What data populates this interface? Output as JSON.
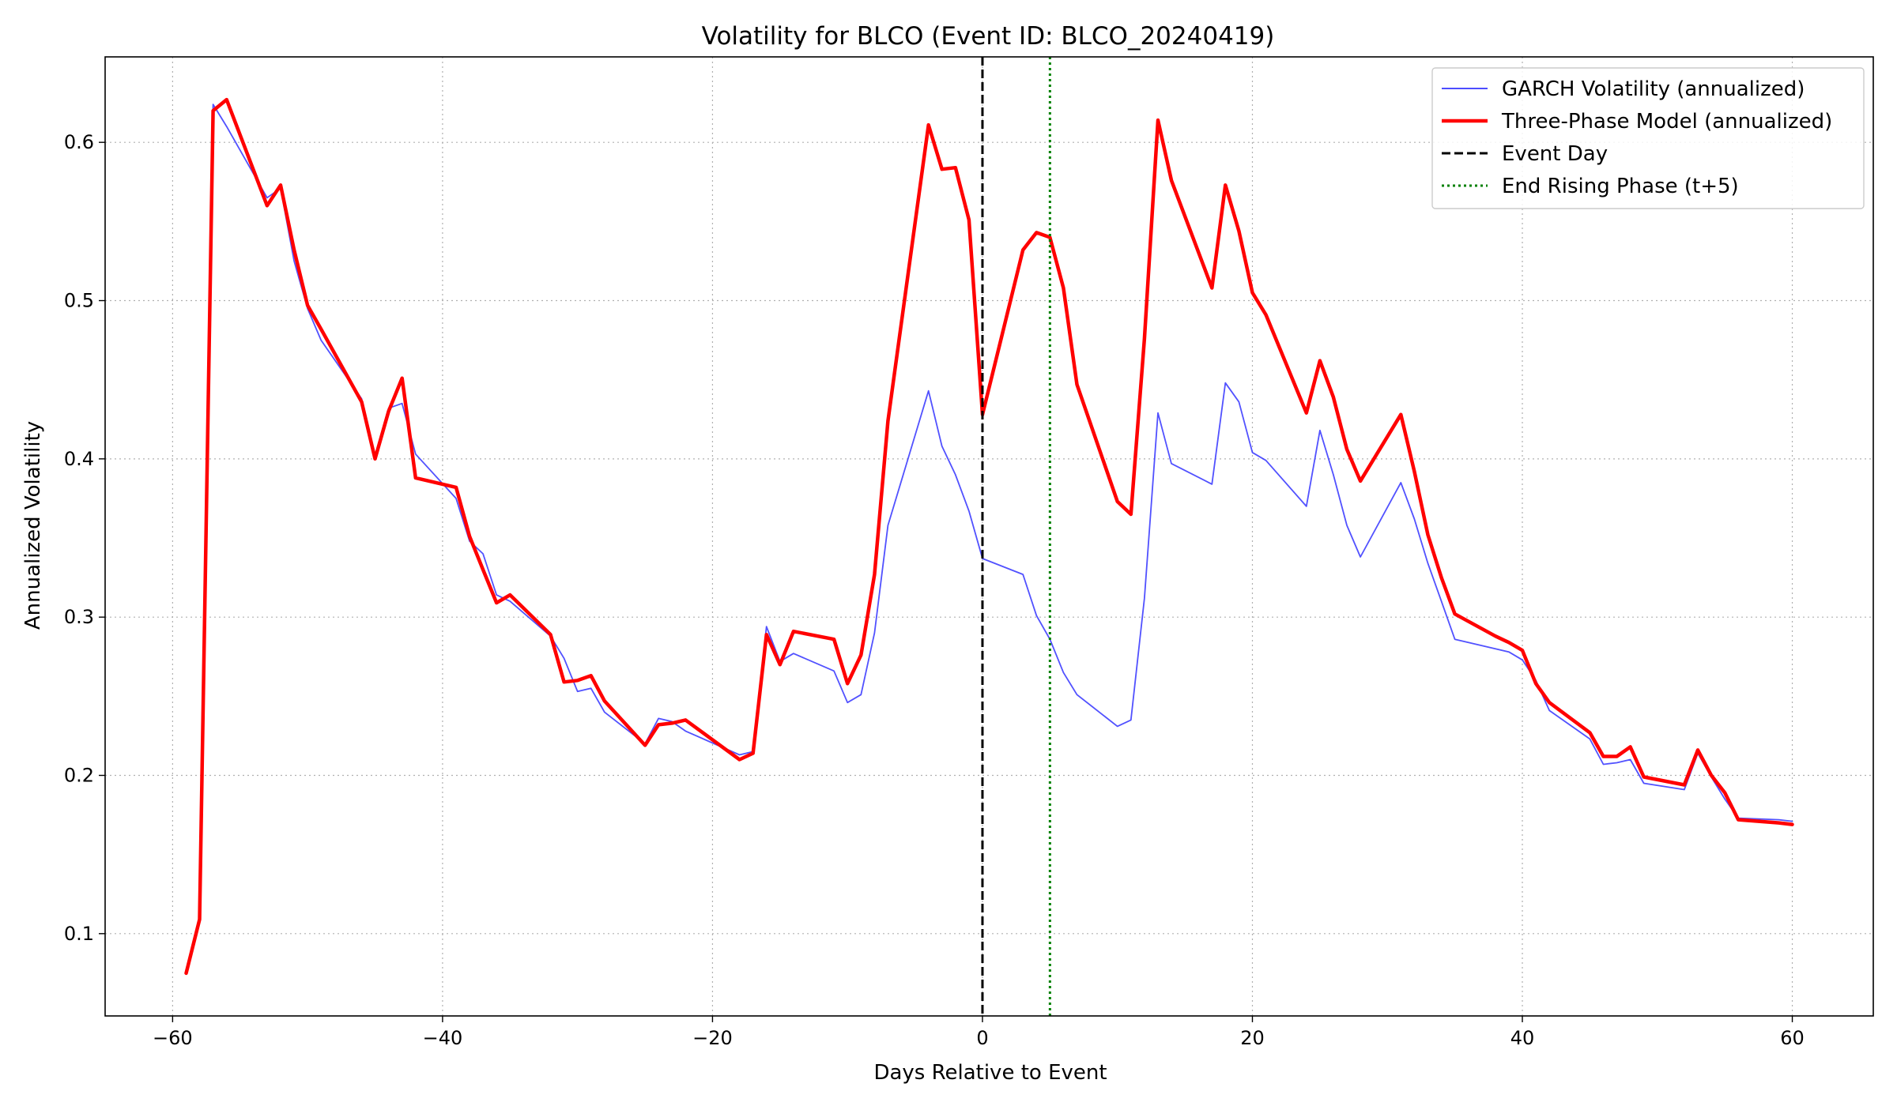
{
  "chart_data": {
    "type": "line",
    "title": "Volatility for BLCO (Event ID: BLCO_20240419)",
    "xlabel": "Days Relative to Event",
    "ylabel": "Annualized Volatility",
    "xlim": [
      -65,
      66
    ],
    "ylim": [
      0.048,
      0.654
    ],
    "xticks": [
      -60,
      -40,
      -20,
      0,
      20,
      40,
      60
    ],
    "xtick_labels": [
      "−60",
      "−40",
      "−20",
      "0",
      "20",
      "40",
      "60"
    ],
    "yticks": [
      0.1,
      0.2,
      0.3,
      0.4,
      0.5,
      0.6
    ],
    "ytick_labels": [
      "0.1",
      "0.2",
      "0.3",
      "0.4",
      "0.5",
      "0.6"
    ],
    "grid": true,
    "legend_position": "top-right",
    "series": [
      {
        "name": "GARCH Volatility (annualized)",
        "color": "#3333ff",
        "style": "solid-thin",
        "x": [
          -59,
          -58,
          -57,
          -56,
          -53,
          -52,
          -51,
          -50,
          -49,
          -46,
          -45,
          -44,
          -43,
          -42,
          -39,
          -38,
          -37,
          -36,
          -35,
          -32,
          -31,
          -30,
          -29,
          -28,
          -25,
          -24,
          -23,
          -22,
          -18,
          -17,
          -16,
          -15,
          -14,
          -11,
          -10,
          -9,
          -8,
          -7,
          -4,
          -3,
          -2,
          -1,
          0,
          3,
          4,
          5,
          6,
          7,
          10,
          11,
          12,
          13,
          14,
          17,
          18,
          19,
          20,
          21,
          24,
          25,
          26,
          27,
          28,
          31,
          32,
          33,
          34,
          35,
          38,
          39,
          40,
          41,
          42,
          45,
          46,
          47,
          48,
          49,
          52,
          53,
          54,
          55,
          56,
          59,
          60
        ],
        "y": [
          0.077,
          0.11,
          0.624,
          0.61,
          0.565,
          0.571,
          0.525,
          0.495,
          0.475,
          0.438,
          0.402,
          0.432,
          0.435,
          0.403,
          0.375,
          0.348,
          0.34,
          0.314,
          0.31,
          0.288,
          0.274,
          0.253,
          0.255,
          0.24,
          0.22,
          0.236,
          0.234,
          0.228,
          0.213,
          0.215,
          0.294,
          0.272,
          0.277,
          0.266,
          0.246,
          0.251,
          0.29,
          0.358,
          0.443,
          0.408,
          0.39,
          0.367,
          0.337,
          0.327,
          0.301,
          0.286,
          0.265,
          0.251,
          0.231,
          0.235,
          0.312,
          0.429,
          0.397,
          0.384,
          0.448,
          0.436,
          0.404,
          0.399,
          0.37,
          0.418,
          0.39,
          0.358,
          0.338,
          0.385,
          0.362,
          0.334,
          0.31,
          0.286,
          0.28,
          0.278,
          0.273,
          0.26,
          0.241,
          0.223,
          0.207,
          0.208,
          0.21,
          0.195,
          0.191,
          0.214,
          0.199,
          0.185,
          0.173,
          0.172,
          0.171
        ]
      },
      {
        "name": "Three-Phase Model (annualized)",
        "color": "#ff0000",
        "style": "solid-thick",
        "x": [
          -59,
          -58,
          -57,
          -56,
          -53,
          -52,
          -51,
          -50,
          -49,
          -46,
          -45,
          -44,
          -43,
          -42,
          -39,
          -38,
          -37,
          -36,
          -35,
          -32,
          -31,
          -30,
          -29,
          -28,
          -25,
          -24,
          -23,
          -22,
          -18,
          -17,
          -16,
          -15,
          -14,
          -11,
          -10,
          -9,
          -8,
          -7,
          -4,
          -3,
          -2,
          -1,
          0,
          3,
          4,
          5,
          6,
          7,
          10,
          11,
          12,
          13,
          14,
          17,
          18,
          19,
          20,
          21,
          24,
          25,
          26,
          27,
          28,
          31,
          32,
          33,
          34,
          35,
          38,
          39,
          40,
          41,
          42,
          45,
          46,
          47,
          48,
          49,
          52,
          53,
          54,
          55,
          56,
          59,
          60
        ],
        "y": [
          0.075,
          0.109,
          0.62,
          0.627,
          0.56,
          0.573,
          0.532,
          0.497,
          0.482,
          0.436,
          0.4,
          0.43,
          0.451,
          0.388,
          0.382,
          0.351,
          0.33,
          0.309,
          0.314,
          0.289,
          0.259,
          0.26,
          0.263,
          0.247,
          0.219,
          0.232,
          0.233,
          0.235,
          0.21,
          0.214,
          0.289,
          0.27,
          0.291,
          0.286,
          0.258,
          0.276,
          0.327,
          0.424,
          0.611,
          0.583,
          0.584,
          0.551,
          0.428,
          0.532,
          0.543,
          0.54,
          0.508,
          0.447,
          0.373,
          0.365,
          0.476,
          0.614,
          0.576,
          0.508,
          0.573,
          0.544,
          0.505,
          0.491,
          0.429,
          0.462,
          0.439,
          0.406,
          0.386,
          0.428,
          0.392,
          0.352,
          0.325,
          0.302,
          0.288,
          0.284,
          0.279,
          0.258,
          0.246,
          0.227,
          0.212,
          0.212,
          0.218,
          0.199,
          0.194,
          0.216,
          0.2,
          0.189,
          0.172,
          0.17,
          0.169
        ]
      }
    ],
    "vlines": [
      {
        "name": "Event Day",
        "x": 0,
        "color": "#000000",
        "style": "dashed"
      },
      {
        "name": "End Rising Phase (t+5)",
        "x": 5,
        "color": "#008000",
        "style": "dotted"
      }
    ]
  }
}
